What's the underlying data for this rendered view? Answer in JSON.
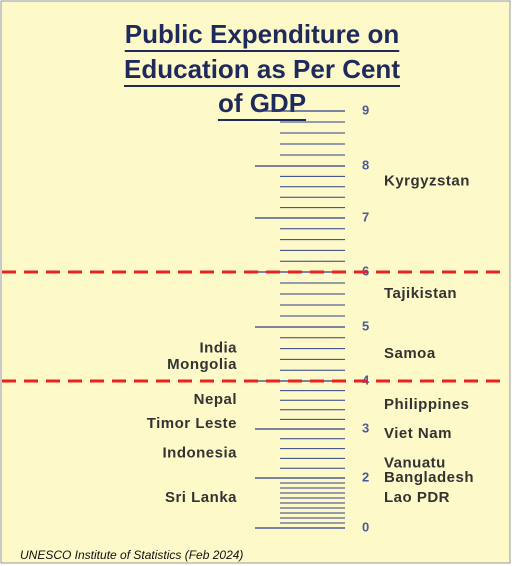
{
  "chart_data": {
    "type": "scale",
    "title": [
      "Public Expenditure on",
      "Education as Per Cent",
      "of GDP"
    ],
    "source": "UNESCO Institute of Statistics (Feb 2024)",
    "ylim": [
      0,
      9
    ],
    "yticks": [
      0,
      2,
      3,
      4,
      5,
      6,
      7,
      8,
      9
    ],
    "reference_lines": [
      6,
      4
    ],
    "reference_color": "#e8231f",
    "left": {
      "categories": [
        "India",
        "Mongolia",
        "Nepal",
        "Timor Leste",
        "Indonesia",
        "Sri Lanka"
      ],
      "values": [
        4.6,
        4.3,
        3.6,
        3.1,
        2.5,
        1.2
      ]
    },
    "right": {
      "categories": [
        "Kyrgyzstan",
        "Tajikistan",
        "Samoa",
        "Philippines",
        "Viet Nam",
        "Vanuatu",
        "Bangladesh",
        "Lao PDR"
      ],
      "values": [
        7.7,
        5.6,
        4.5,
        3.5,
        2.9,
        2.3,
        2.0,
        1.2
      ]
    },
    "color": "#2e3f86"
  }
}
